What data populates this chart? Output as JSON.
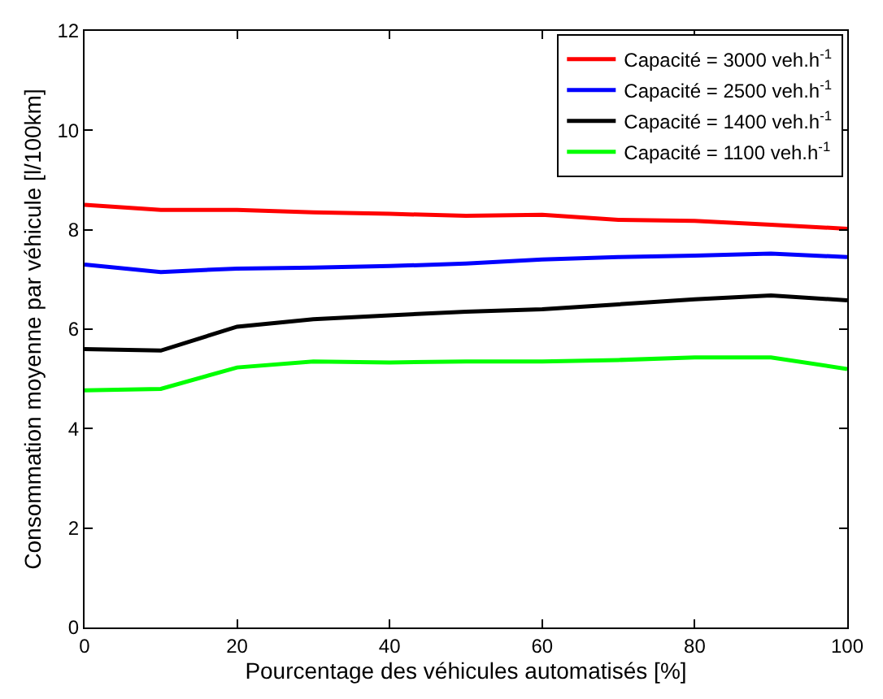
{
  "chart_data": {
    "type": "line",
    "xlabel": "Pourcentage des véhicules automatisés [%]",
    "ylabel": "Consommation moyenne par véhicule [l/100km]",
    "x": [
      0,
      10,
      20,
      30,
      40,
      50,
      60,
      70,
      80,
      90,
      100
    ],
    "series": [
      {
        "name": "Capacité = 3000 veh.h$^{-1}$",
        "color": "#ff0000",
        "values": [
          8.5,
          8.4,
          8.4,
          8.35,
          8.32,
          8.28,
          8.3,
          8.2,
          8.18,
          8.1,
          8.02
        ]
      },
      {
        "name": "Capacité = 2500 veh.h$^{-1}$",
        "color": "#0000ff",
        "values": [
          7.3,
          7.15,
          7.22,
          7.24,
          7.27,
          7.32,
          7.4,
          7.45,
          7.48,
          7.52,
          7.45
        ]
      },
      {
        "name": "Capacité = 1400 veh.h$^{-1}$",
        "color": "#000000",
        "values": [
          5.6,
          5.57,
          6.05,
          6.2,
          6.28,
          6.35,
          6.4,
          6.5,
          6.6,
          6.68,
          6.58
        ]
      },
      {
        "name": "Capacité = 1100 veh.h$^{-1}$",
        "color": "#00ff00",
        "values": [
          4.77,
          4.8,
          5.23,
          5.35,
          5.33,
          5.35,
          5.35,
          5.38,
          5.43,
          5.43,
          5.2
        ]
      }
    ],
    "xlim": [
      0,
      100
    ],
    "xticks": [
      0,
      20,
      40,
      60,
      80,
      100
    ],
    "ylim": [
      0,
      12
    ],
    "yticks": [
      0,
      2,
      4,
      6,
      8,
      10,
      12
    ],
    "legend": "top right",
    "marker": "none",
    "line_style": "solid"
  }
}
